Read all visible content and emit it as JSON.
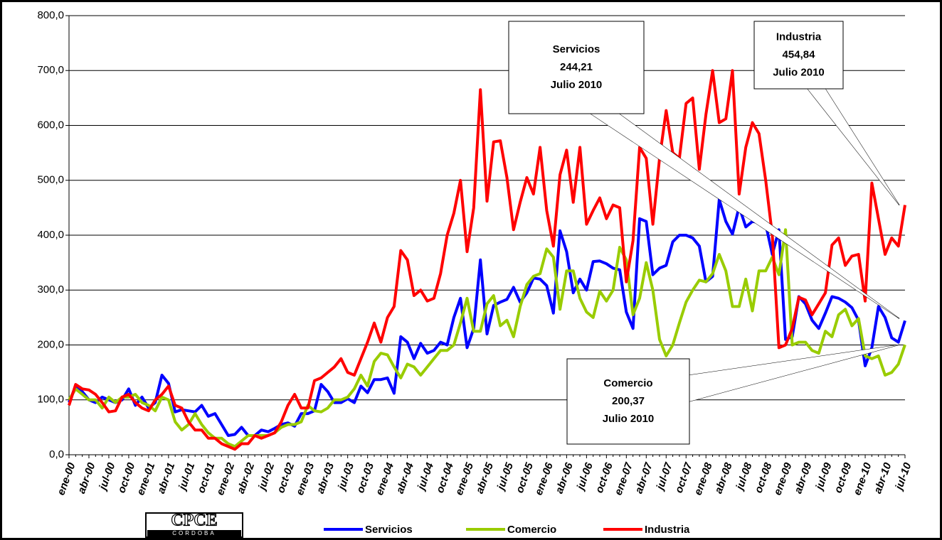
{
  "chart_data": {
    "type": "line",
    "categories": [
      "ene-00",
      null,
      null,
      "abr-00",
      null,
      null,
      "jul-00",
      null,
      null,
      "oct-00",
      null,
      null,
      "ene-01",
      null,
      null,
      "abr-01",
      null,
      null,
      "jul-01",
      null,
      null,
      "oct-01",
      null,
      null,
      "ene-02",
      null,
      null,
      "abr-02",
      null,
      null,
      "jul-02",
      null,
      null,
      "oct-02",
      null,
      null,
      "ene-03",
      null,
      null,
      "abr-03",
      null,
      null,
      "jul-03",
      null,
      null,
      "oct-03",
      null,
      null,
      "ene-04",
      null,
      null,
      "abr-04",
      null,
      null,
      "jul-04",
      null,
      null,
      "oct-04",
      null,
      null,
      "ene-05",
      null,
      null,
      "abr-05",
      null,
      null,
      "jul-05",
      null,
      null,
      "oct-05",
      null,
      null,
      "ene-06",
      null,
      null,
      "abr-06",
      null,
      null,
      "jul-06",
      null,
      null,
      "oct-06",
      null,
      null,
      "ene-07",
      null,
      null,
      "abr-07",
      null,
      null,
      "jul-07",
      null,
      null,
      "oct-07",
      null,
      null,
      "ene-08",
      null,
      null,
      "abr-08",
      null,
      null,
      "jul-08",
      null,
      null,
      "oct-08",
      null,
      null,
      "ene-09",
      null,
      null,
      "abr-09",
      null,
      null,
      "jul-09",
      null,
      null,
      "oct-09",
      null,
      null,
      "ene-10",
      null,
      null,
      "abr-10",
      null,
      null,
      "jul-10"
    ],
    "series": [
      {
        "name": "Servicios",
        "color": "#0000ff",
        "values": [
          95,
          125,
          115,
          100,
          95,
          105,
          100,
          95,
          100,
          120,
          90,
          105,
          85,
          95,
          145,
          130,
          78,
          82,
          80,
          78,
          90,
          70,
          75,
          55,
          35,
          37,
          50,
          35,
          35,
          45,
          42,
          48,
          55,
          58,
          52,
          75,
          75,
          80,
          128,
          115,
          95,
          95,
          102,
          95,
          125,
          113,
          137,
          137,
          140,
          112,
          215,
          205,
          175,
          203,
          185,
          190,
          205,
          200,
          250,
          285,
          195,
          230,
          355,
          220,
          272,
          278,
          283,
          305,
          278,
          295,
          322,
          320,
          308,
          258,
          408,
          370,
          295,
          320,
          300,
          352,
          353,
          348,
          340,
          337,
          260,
          230,
          430,
          425,
          328,
          340,
          345,
          388,
          400,
          400,
          395,
          380,
          315,
          325,
          465,
          425,
          402,
          452,
          415,
          425,
          423,
          420,
          365,
          410,
          210,
          215,
          288,
          275,
          245,
          230,
          258,
          288,
          285,
          278,
          268,
          245,
          162,
          195,
          270,
          250,
          213,
          205,
          244.21
        ]
      },
      {
        "name": "Comercio",
        "color": "#99cc00",
        "values": [
          100,
          120,
          110,
          100,
          100,
          85,
          105,
          95,
          105,
          105,
          110,
          95,
          90,
          80,
          105,
          100,
          60,
          45,
          55,
          75,
          55,
          40,
          30,
          30,
          20,
          15,
          25,
          35,
          35,
          35,
          35,
          40,
          50,
          55,
          55,
          60,
          90,
          80,
          78,
          85,
          100,
          100,
          105,
          120,
          145,
          125,
          170,
          185,
          182,
          160,
          140,
          165,
          160,
          145,
          160,
          175,
          190,
          190,
          200,
          240,
          285,
          225,
          225,
          275,
          290,
          235,
          245,
          215,
          270,
          310,
          325,
          330,
          375,
          360,
          265,
          335,
          335,
          285,
          260,
          250,
          298,
          280,
          300,
          378,
          355,
          255,
          285,
          350,
          300,
          210,
          180,
          200,
          240,
          278,
          300,
          318,
          315,
          330,
          365,
          335,
          270,
          270,
          320,
          262,
          335,
          335,
          360,
          328,
          410,
          200,
          205,
          205,
          190,
          185,
          225,
          215,
          255,
          265,
          235,
          248,
          180,
          175,
          180,
          145,
          150,
          165,
          200.37
        ]
      },
      {
        "name": "Industria",
        "color": "#ff0000",
        "values": [
          90,
          128,
          120,
          118,
          110,
          95,
          78,
          80,
          105,
          110,
          95,
          85,
          80,
          100,
          110,
          125,
          90,
          85,
          60,
          45,
          45,
          30,
          30,
          20,
          15,
          10,
          20,
          20,
          35,
          30,
          35,
          40,
          60,
          90,
          110,
          85,
          85,
          135,
          140,
          150,
          160,
          175,
          150,
          145,
          175,
          205,
          240,
          205,
          250,
          270,
          372,
          355,
          290,
          300,
          280,
          285,
          330,
          400,
          440,
          500,
          370,
          450,
          665,
          462,
          570,
          572,
          505,
          410,
          460,
          505,
          475,
          560,
          445,
          380,
          510,
          555,
          460,
          560,
          420,
          445,
          468,
          430,
          455,
          450,
          315,
          390,
          560,
          540,
          420,
          540,
          627,
          550,
          540,
          640,
          650,
          520,
          620,
          700,
          605,
          612,
          700,
          475,
          560,
          605,
          585,
          500,
          400,
          195,
          200,
          230,
          287,
          282,
          255,
          275,
          295,
          382,
          395,
          345,
          362,
          365,
          280,
          495,
          430,
          365,
          395,
          380,
          454.84
        ]
      }
    ],
    "ylim": [
      0,
      800
    ],
    "yticks": [
      {
        "value": 0,
        "label": "0,0"
      },
      {
        "value": 100,
        "label": "100,0"
      },
      {
        "value": 200,
        "label": "200,0"
      },
      {
        "value": 300,
        "label": "300,0"
      },
      {
        "value": 400,
        "label": "400,0"
      },
      {
        "value": 500,
        "label": "500,0"
      },
      {
        "value": 600,
        "label": "600,0"
      },
      {
        "value": 700,
        "label": "700,0"
      },
      {
        "value": 800,
        "label": "800,0"
      }
    ],
    "grid": true,
    "legend": "bottom",
    "annotations": [
      {
        "series": 0,
        "lines": [
          "Servicios",
          "244,21",
          "Julio 2010"
        ]
      },
      {
        "series": 2,
        "lines": [
          "Industria",
          "454,84",
          "Julio 2010"
        ]
      },
      {
        "series": 1,
        "lines": [
          "Comercio",
          "200,37",
          "Julio 2010"
        ]
      }
    ]
  },
  "logo": {
    "title": "CPCE",
    "subtitle": "CORDOBA"
  }
}
